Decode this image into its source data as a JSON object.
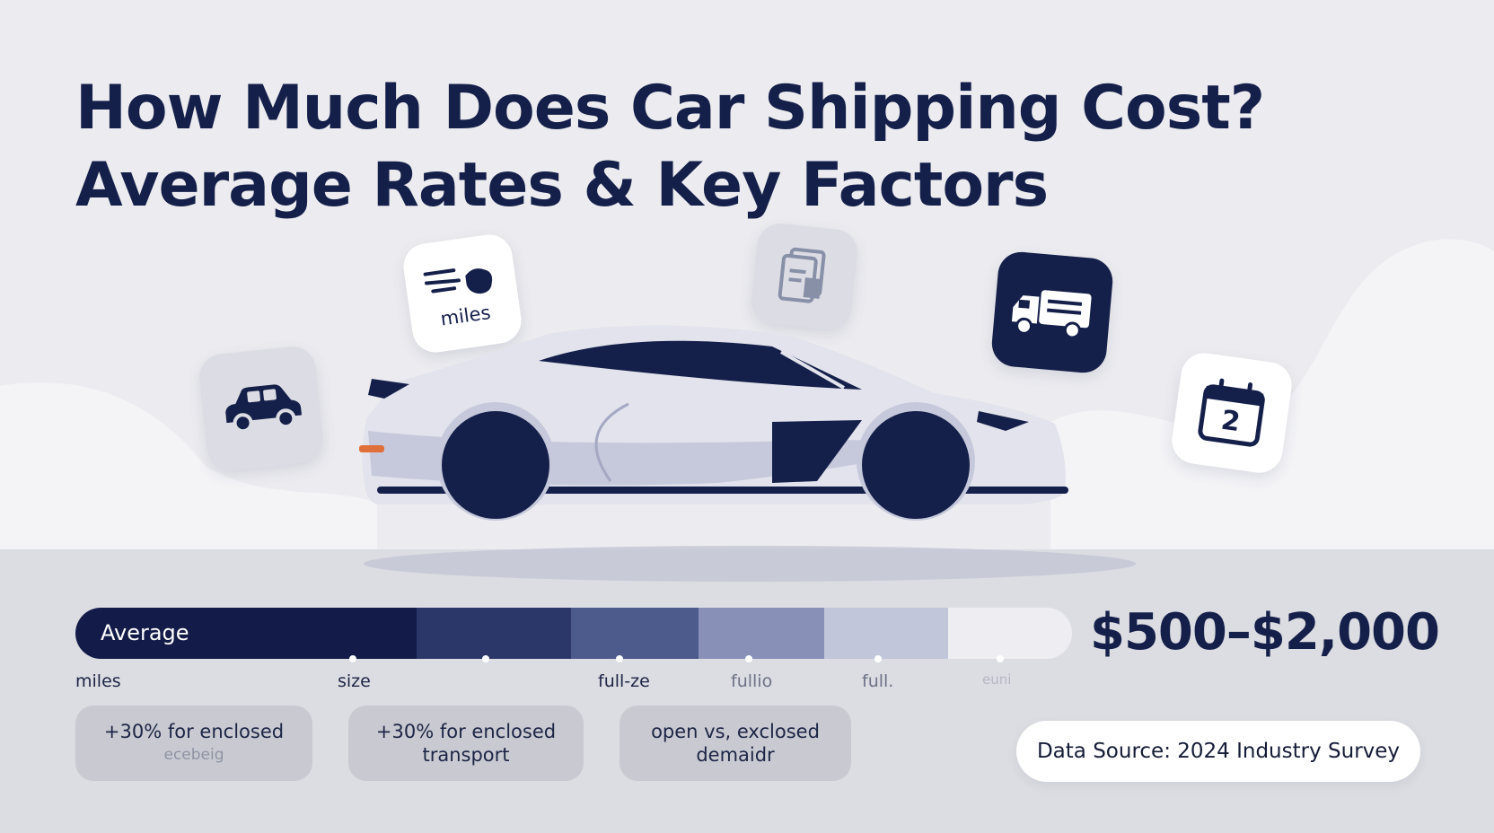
{
  "title_lines": [
    "How Much Does Car Shipping Cost?",
    "Average Rates & Key Factors"
  ],
  "icons": {
    "car_tile": "car-icon",
    "miles_tile": {
      "icon": "distance-icon",
      "label": "miles"
    },
    "document_tile": "document-icon",
    "truck_tile": "truck-icon",
    "calendar_tile": {
      "icon": "calendar-icon",
      "label": "2"
    },
    "hero": "sports-car-illustration"
  },
  "cost_bar": {
    "label": "Average",
    "segment_colors": [
      "#131c48",
      "#2a3768",
      "#4c5a8c",
      "#8890b8",
      "#c2c6da",
      "#eeeef2"
    ]
  },
  "tick_labels": [
    "miles",
    "size",
    "full-ze",
    "fullio",
    "full.",
    "euni"
  ],
  "price_range": "$500–$2,000",
  "cards": [
    {
      "line1": "+30% for enclosed",
      "line2": "ecebeig"
    },
    {
      "line1": "+30% for enclosed",
      "line2": "transport"
    },
    {
      "line1": "open vs, exclosed",
      "line2": "demaidr"
    }
  ],
  "source": "Data Source: 2024 Industry Survey",
  "colors": {
    "navy": "#15204a",
    "background": "#ececf0",
    "card": "#c9cad1"
  }
}
